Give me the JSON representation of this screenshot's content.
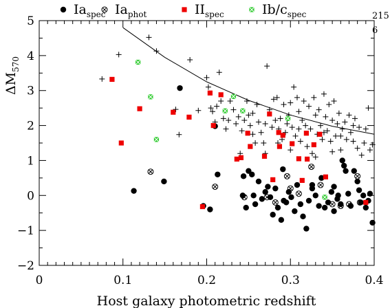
{
  "chart_data": {
    "type": "scatter",
    "xlabel": "Host galaxy photometric redshift",
    "ylabel": "ΔM",
    "ylabel_sub": "570",
    "xlim": [
      0,
      0.4
    ],
    "ylim": [
      -2,
      5
    ],
    "xticks": [
      "0",
      "0.1",
      "0.2",
      "0.3",
      "0.4"
    ],
    "yticks": [
      "−2",
      "−1",
      "0",
      "1",
      "2",
      "3",
      "4",
      "5"
    ],
    "annotation": [
      "215",
      "6"
    ],
    "legend": [
      {
        "main": "Ia",
        "sub": "spec",
        "marker": "dot"
      },
      {
        "main": "Ia",
        "sub": "phot",
        "marker": "circle-x"
      },
      {
        "main": "II",
        "sub": "spec",
        "marker": "square",
        "color": "#ee0000"
      },
      {
        "main": "Ib/c",
        "sub": "spec",
        "marker": "hatched-square",
        "color": "#33cc33"
      }
    ],
    "curve": [
      [
        0.1,
        4.8
      ],
      [
        0.15,
        3.95
      ],
      [
        0.2,
        3.25
      ],
      [
        0.25,
        2.72
      ],
      [
        0.3,
        2.3
      ],
      [
        0.35,
        1.98
      ],
      [
        0.4,
        1.75
      ]
    ],
    "series": [
      {
        "name": "Ia",
        "name_sub": "spec",
        "marker": "dot",
        "color": "#000000",
        "points": [
          [
            0.113,
            0.13
          ],
          [
            0.149,
            0.4
          ],
          [
            0.168,
            3.07
          ],
          [
            0.196,
            -0.3
          ],
          [
            0.204,
            -0.4
          ],
          [
            0.21,
            1.98
          ],
          [
            0.213,
            0.6
          ],
          [
            0.243,
            0.0
          ],
          [
            0.247,
            -0.35
          ],
          [
            0.25,
            0.7
          ],
          [
            0.254,
            0.6
          ],
          [
            0.256,
            0.0
          ],
          [
            0.258,
            -0.25
          ],
          [
            0.262,
            0.4
          ],
          [
            0.266,
            -0.1
          ],
          [
            0.27,
            0.1
          ],
          [
            0.273,
            0.25
          ],
          [
            0.276,
            -0.05
          ],
          [
            0.279,
            -0.55
          ],
          [
            0.282,
            0.2
          ],
          [
            0.285,
            -0.35
          ],
          [
            0.289,
            -0.7
          ],
          [
            0.292,
            -0.15
          ],
          [
            0.295,
            -0.2
          ],
          [
            0.298,
            0.1
          ],
          [
            0.301,
            -0.05
          ],
          [
            0.305,
            -0.45
          ],
          [
            0.308,
            0.3
          ],
          [
            0.312,
            -0.25
          ],
          [
            0.315,
            -0.6
          ],
          [
            0.319,
            -0.95
          ],
          [
            0.322,
            -0.15
          ],
          [
            0.326,
            0.2
          ],
          [
            0.33,
            0.0
          ],
          [
            0.334,
            -0.3
          ],
          [
            0.337,
            0.5
          ],
          [
            0.341,
            -0.35
          ],
          [
            0.345,
            -0.2
          ],
          [
            0.349,
            0.1
          ],
          [
            0.352,
            -0.45
          ],
          [
            0.356,
            -0.1
          ],
          [
            0.36,
            -0.25
          ],
          [
            0.364,
            0.85
          ],
          [
            0.366,
            0.7
          ],
          [
            0.369,
            0.05
          ],
          [
            0.372,
            -0.3
          ],
          [
            0.376,
            0.7
          ],
          [
            0.38,
            0.4
          ],
          [
            0.382,
            0.15
          ],
          [
            0.384,
            -0.2
          ],
          [
            0.387,
            0.0
          ],
          [
            0.39,
            -0.35
          ],
          [
            0.393,
            -0.15
          ],
          [
            0.395,
            0.05
          ],
          [
            0.398,
            -0.78
          ],
          [
            0.362,
            1.0
          ],
          [
            0.352,
            0.25
          ],
          [
            0.326,
            0.3
          ],
          [
            0.357,
            0.0
          ],
          [
            0.244,
            0.55
          ],
          [
            0.291,
            0.75
          ]
        ]
      },
      {
        "name": "Ia",
        "name_sub": "phot",
        "marker": "circle-x",
        "color": "#000000",
        "points": [
          [
            0.133,
            0.68
          ],
          [
            0.21,
            0.25
          ],
          [
            0.245,
            -0.05
          ],
          [
            0.272,
            -0.05
          ],
          [
            0.282,
            -0.2
          ],
          [
            0.296,
            0.55
          ],
          [
            0.3,
            0.2
          ],
          [
            0.31,
            0.05
          ],
          [
            0.325,
            0.82
          ],
          [
            0.336,
            0.3
          ],
          [
            0.35,
            -0.25
          ],
          [
            0.36,
            -0.3
          ],
          [
            0.37,
            -0.25
          ],
          [
            0.38,
            0.55
          ],
          [
            0.383,
            -0.2
          ]
        ]
      },
      {
        "name": "II",
        "name_sub": "spec",
        "marker": "square",
        "color": "#ee0000",
        "points": [
          [
            0.087,
            3.32
          ],
          [
            0.098,
            1.5
          ],
          [
            0.12,
            2.48
          ],
          [
            0.16,
            2.38
          ],
          [
            0.179,
            2.24
          ],
          [
            0.195,
            -0.32
          ],
          [
            0.204,
            2.93
          ],
          [
            0.208,
            2.0
          ],
          [
            0.217,
            2.88
          ],
          [
            0.236,
            1.04
          ],
          [
            0.241,
            1.08
          ],
          [
            0.249,
            1.78
          ],
          [
            0.252,
            1.4
          ],
          [
            0.269,
            1.12
          ],
          [
            0.275,
            2.33
          ],
          [
            0.279,
            0.45
          ],
          [
            0.286,
            1.8
          ],
          [
            0.287,
            1.4
          ],
          [
            0.291,
            1.72
          ],
          [
            0.302,
            1.48
          ],
          [
            0.31,
            1.05
          ],
          [
            0.314,
            0.43
          ],
          [
            0.319,
            1.78
          ],
          [
            0.32,
            1.04
          ],
          [
            0.328,
            1.45
          ],
          [
            0.335,
            1.75
          ],
          [
            0.342,
            0.53
          ],
          [
            0.39,
            -0.2
          ]
        ]
      },
      {
        "name": "Ib/c",
        "name_sub": "spec",
        "marker": "hatched-square",
        "color": "#33cc33",
        "points": [
          [
            0.118,
            3.81
          ],
          [
            0.133,
            2.82
          ],
          [
            0.14,
            1.6
          ],
          [
            0.222,
            2.42
          ],
          [
            0.232,
            2.83
          ],
          [
            0.243,
            2.42
          ],
          [
            0.297,
            2.2
          ],
          [
            0.341,
            -0.05
          ]
        ]
      },
      {
        "name": "",
        "marker": "plus",
        "color": "#000000",
        "points": [
          [
            0.075,
            3.33
          ],
          [
            0.095,
            4.03
          ],
          [
            0.131,
            4.52
          ],
          [
            0.14,
            4.13
          ],
          [
            0.163,
            2.46
          ],
          [
            0.167,
            1.74
          ],
          [
            0.18,
            3.88
          ],
          [
            0.19,
            2.43
          ],
          [
            0.2,
            3.37
          ],
          [
            0.202,
            3.1
          ],
          [
            0.205,
            2.5
          ],
          [
            0.207,
            2.4
          ],
          [
            0.21,
            2.1
          ],
          [
            0.212,
            2.55
          ],
          [
            0.215,
            3.52
          ],
          [
            0.217,
            2.7
          ],
          [
            0.22,
            2.2
          ],
          [
            0.223,
            1.9
          ],
          [
            0.226,
            2.15
          ],
          [
            0.228,
            2.7
          ],
          [
            0.232,
            2.45
          ],
          [
            0.235,
            2.05
          ],
          [
            0.238,
            2.25
          ],
          [
            0.24,
            1.2
          ],
          [
            0.242,
            1.85
          ],
          [
            0.245,
            2.15
          ],
          [
            0.248,
            2.7
          ],
          [
            0.25,
            2.3
          ],
          [
            0.252,
            2.0
          ],
          [
            0.255,
            1.75
          ],
          [
            0.258,
            1.5
          ],
          [
            0.26,
            2.6
          ],
          [
            0.262,
            2.1
          ],
          [
            0.265,
            1.8
          ],
          [
            0.268,
            1.5
          ],
          [
            0.27,
            2.05
          ],
          [
            0.272,
            3.7
          ],
          [
            0.275,
            2.45
          ],
          [
            0.278,
            1.95
          ],
          [
            0.28,
            2.75
          ],
          [
            0.282,
            2.15
          ],
          [
            0.284,
            2.8
          ],
          [
            0.286,
            1.9
          ],
          [
            0.288,
            2.2
          ],
          [
            0.29,
            1.6
          ],
          [
            0.292,
            2.6
          ],
          [
            0.294,
            1.8
          ],
          [
            0.296,
            2.05
          ],
          [
            0.298,
            2.3
          ],
          [
            0.3,
            2.65
          ],
          [
            0.302,
            1.95
          ],
          [
            0.304,
            3.1
          ],
          [
            0.306,
            1.7
          ],
          [
            0.308,
            2.8
          ],
          [
            0.31,
            2.4
          ],
          [
            0.312,
            1.55
          ],
          [
            0.314,
            2.15
          ],
          [
            0.316,
            2.7
          ],
          [
            0.318,
            2.0
          ],
          [
            0.32,
            1.4
          ],
          [
            0.322,
            2.55
          ],
          [
            0.324,
            1.9
          ],
          [
            0.326,
            1.2
          ],
          [
            0.328,
            2.8
          ],
          [
            0.33,
            2.3
          ],
          [
            0.332,
            1.75
          ],
          [
            0.334,
            2.45
          ],
          [
            0.336,
            2.0
          ],
          [
            0.338,
            1.6
          ],
          [
            0.34,
            2.9
          ],
          [
            0.342,
            2.25
          ],
          [
            0.344,
            1.85
          ],
          [
            0.346,
            2.6
          ],
          [
            0.348,
            1.55
          ],
          [
            0.35,
            2.15
          ],
          [
            0.352,
            2.7
          ],
          [
            0.354,
            1.7
          ],
          [
            0.356,
            2.05
          ],
          [
            0.358,
            2.35
          ],
          [
            0.36,
            1.3
          ],
          [
            0.362,
            1.9
          ],
          [
            0.365,
            2.1
          ],
          [
            0.367,
            1.6
          ],
          [
            0.37,
            2.3
          ],
          [
            0.372,
            1.8
          ],
          [
            0.375,
            1.55
          ],
          [
            0.377,
            2.2
          ],
          [
            0.38,
            1.35
          ],
          [
            0.382,
            1.95
          ],
          [
            0.385,
            1.15
          ],
          [
            0.388,
            1.5
          ],
          [
            0.39,
            1.9
          ],
          [
            0.393,
            2.5
          ],
          [
            0.395,
            1.3
          ],
          [
            0.398,
            1.45
          ],
          [
            0.34,
            1.8
          ],
          [
            0.285,
            1.5
          ],
          [
            0.3,
            1.3
          ],
          [
            0.33,
            1.1
          ],
          [
            0.36,
            1.7
          ],
          [
            0.27,
            1.2
          ],
          [
            0.255,
            2.35
          ],
          [
            0.31,
            1.9
          ],
          [
            0.375,
            2.0
          ],
          [
            0.35,
            1.25
          ]
        ]
      }
    ]
  }
}
